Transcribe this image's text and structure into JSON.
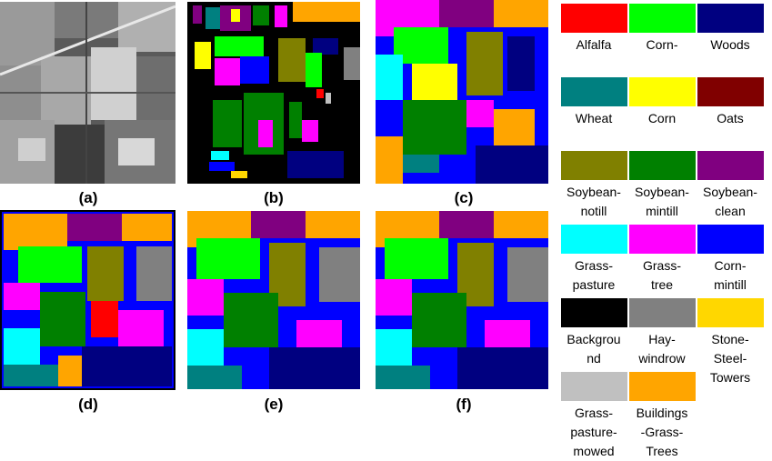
{
  "captions": {
    "a": "(a)",
    "b": "(b)",
    "c": "(c)",
    "d": "(d)",
    "e": "(e)",
    "f": "(f)"
  },
  "legend": [
    {
      "label": "Alfalfa",
      "color": "#ff0000"
    },
    {
      "label": "Corn-",
      "color": "#00ff00"
    },
    {
      "label": "Woods",
      "color": "#000080"
    },
    {
      "label": "Wheat",
      "color": "#008080"
    },
    {
      "label": "Corn",
      "color": "#ffff00"
    },
    {
      "label": "Oats",
      "color": "#800000"
    },
    {
      "label": "Soybean-\nnotill",
      "color": "#808000"
    },
    {
      "label": "Soybean-\nmintill",
      "color": "#008000"
    },
    {
      "label": "Soybean-\nclean",
      "color": "#800080"
    },
    {
      "label": "Grass-\npasture",
      "color": "#00ffff"
    },
    {
      "label": "Grass-\ntree",
      "color": "#ff00ff"
    },
    {
      "label": "Corn-\nmintill",
      "color": "#0000ff"
    },
    {
      "label": "Backgrou\nnd",
      "color": "#000000"
    },
    {
      "label": "Hay-\nwindrow",
      "color": "#808080"
    },
    {
      "label": "Stone-\nSteel-\nTowers",
      "color": "#ffd700"
    },
    {
      "label": "Grass-\npasture-\nmowed",
      "color": "#c0c0c0"
    },
    {
      "label": "Buildings\n-Grass-\nTrees",
      "color": "#ffa500"
    }
  ]
}
